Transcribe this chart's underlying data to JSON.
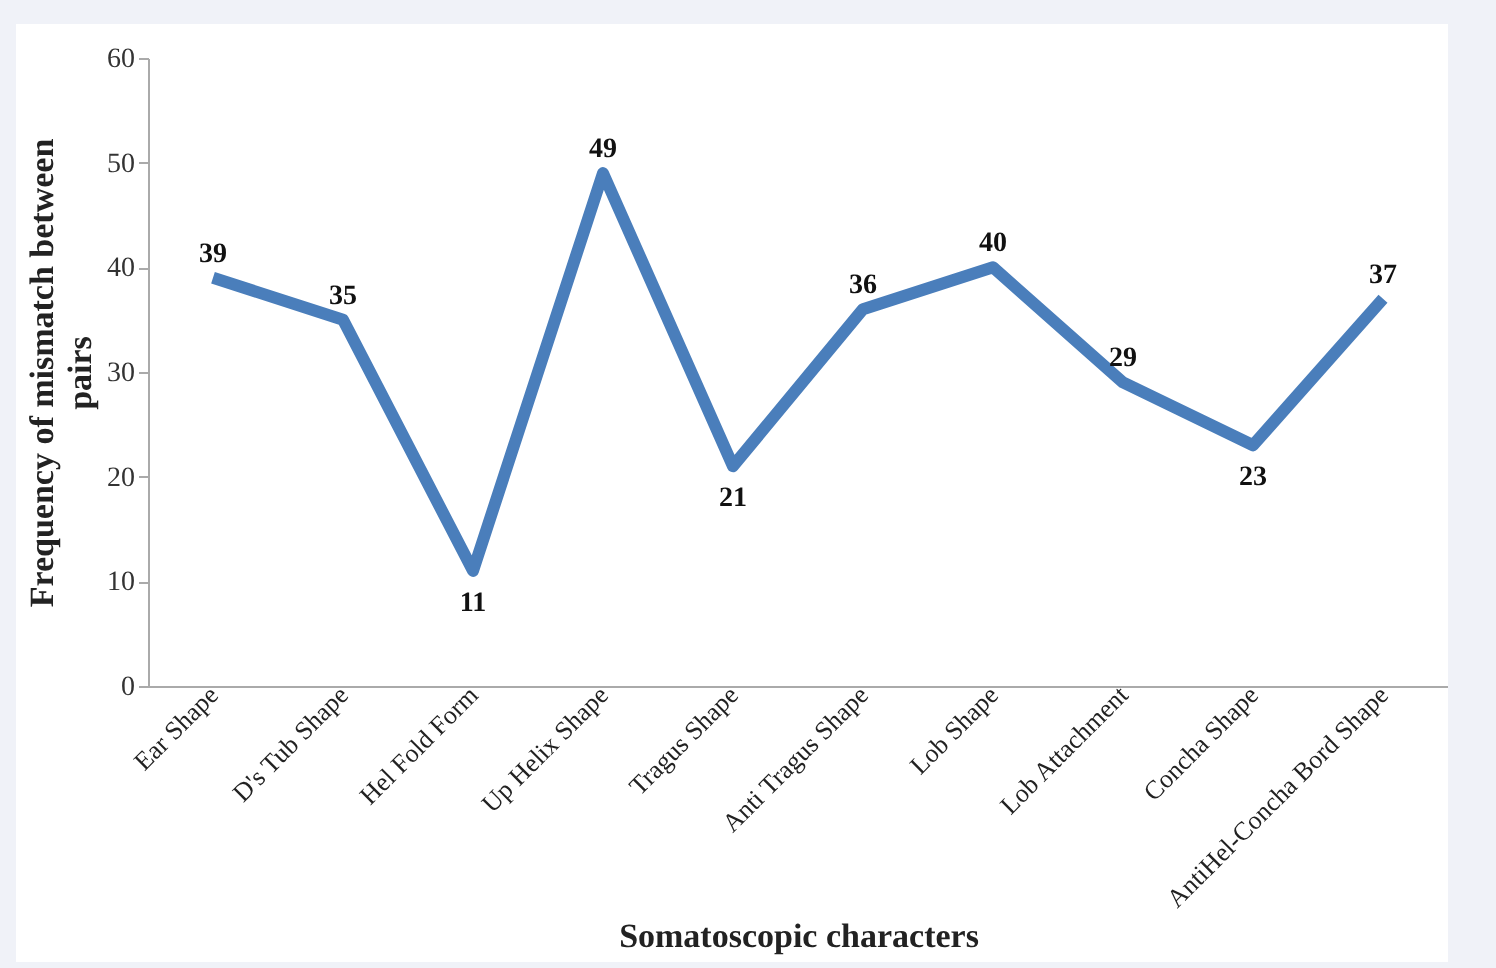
{
  "chart_data": {
    "type": "line",
    "xlabel": "Somatoscopic characters",
    "ylabel": "Frequency of mismatch between pairs",
    "categories": [
      "Ear Shape",
      "D's Tub Shape",
      "Hel Fold Form",
      "Up Helix Shape",
      "Tragus Shape",
      "Anti Tragus Shape",
      "Lob Shape",
      "Lob Attachment",
      "Concha Shape",
      "AntiHel-Concha Bord Shape"
    ],
    "series": [
      {
        "color": "#4a7ebb",
        "values": [
          39,
          35,
          11,
          49,
          21,
          36,
          40,
          29,
          23,
          37
        ]
      }
    ],
    "ylim": [
      0,
      60
    ],
    "yticks": [
      0,
      10,
      20,
      30,
      40,
      50,
      60
    ],
    "grid": false,
    "data_labels": true,
    "marker": "none",
    "line_style": "solid",
    "legend": false
  }
}
